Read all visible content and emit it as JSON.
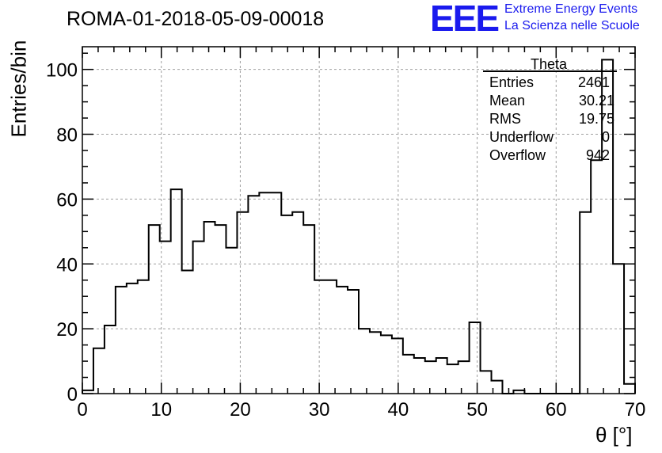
{
  "header": {
    "title": "ROMA-01-2018-05-09-00018",
    "logo": "EEE",
    "brand_line1": "Extreme Energy Events",
    "brand_line2": "La Scienza nelle Scuole"
  },
  "stats": {
    "name": "Theta",
    "rows": [
      {
        "label": "Entries",
        "value": "2461"
      },
      {
        "label": "Mean",
        "value": "30.21"
      },
      {
        "label": "RMS",
        "value": "19.75"
      },
      {
        "label": "Underflow",
        "value": "0"
      },
      {
        "label": "Overflow",
        "value": "942"
      }
    ]
  },
  "chart_data": {
    "type": "bar",
    "histogram": true,
    "xlabel": "θ [°]",
    "ylabel": "Entries/bin",
    "xlim": [
      0,
      70
    ],
    "ylim": [
      0,
      107
    ],
    "grid": true,
    "bin_width": 1.4,
    "x_ticks": [
      0,
      10,
      20,
      30,
      40,
      50,
      60,
      70
    ],
    "y_ticks": [
      0,
      20,
      40,
      60,
      80,
      100
    ],
    "values": [
      1,
      14,
      21,
      33,
      34,
      35,
      52,
      47,
      63,
      38,
      47,
      53,
      52,
      45,
      56,
      61,
      62,
      62,
      55,
      56,
      52,
      35,
      35,
      33,
      32,
      20,
      19,
      18,
      17,
      12,
      11,
      10,
      11,
      9,
      10,
      22,
      7,
      4,
      0,
      1,
      0,
      0,
      0,
      0,
      0,
      56,
      72,
      103,
      40,
      3
    ]
  }
}
